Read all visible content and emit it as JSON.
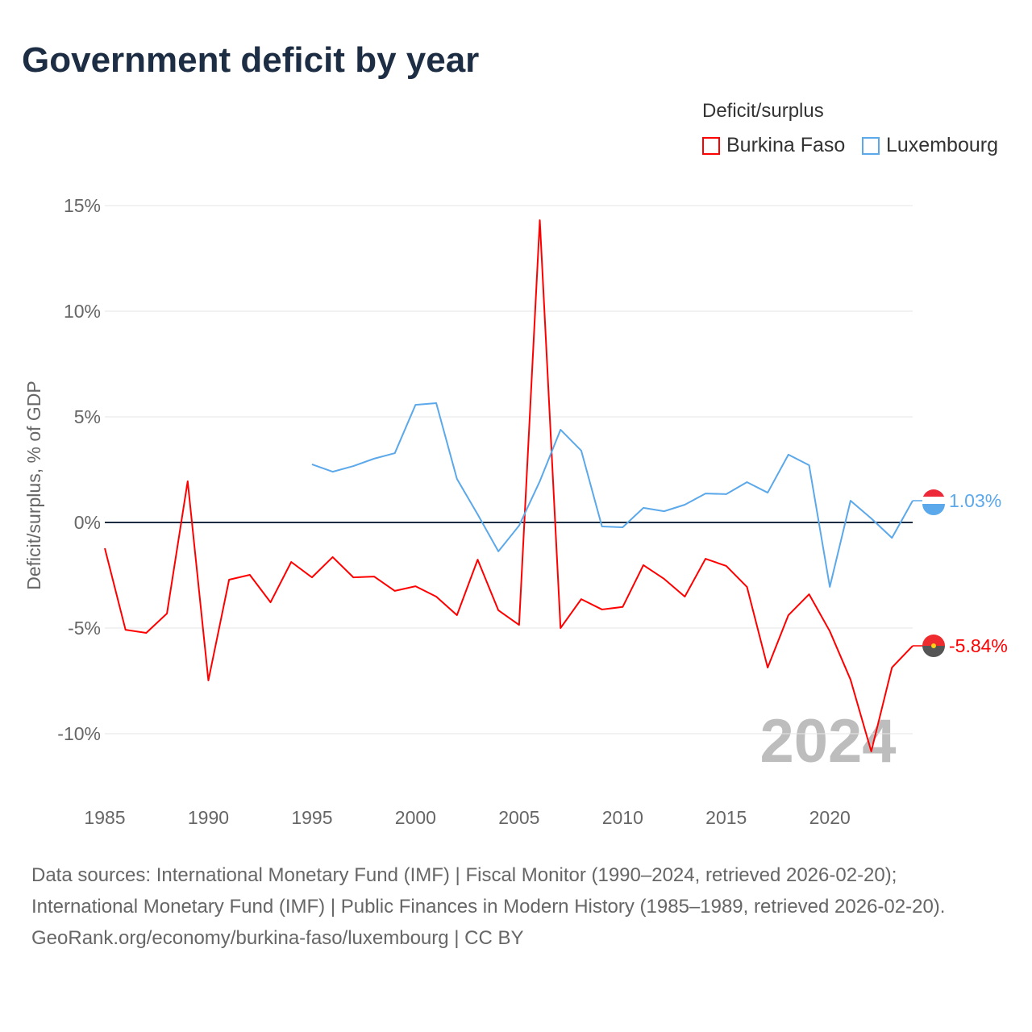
{
  "title": "Government deficit by year",
  "legend": {
    "title": "Deficit/surplus",
    "items": [
      {
        "name": "Burkina Faso",
        "color": "#ff0000"
      },
      {
        "name": "Luxembourg",
        "color": "#5ba8ea"
      }
    ]
  },
  "year_watermark": "2024",
  "footer": {
    "sources": "Data sources: International Monetary Fund (IMF) | Fiscal Monitor (1990–2024, retrieved 2026-02-20); International Monetary Fund (IMF) | Public Finances in Modern History (1985–1989, retrieved 2026-02-20).",
    "credit": "GeoRank.org/economy/burkina-faso/luxembourg | CC BY"
  },
  "chart_data": {
    "type": "line",
    "title": "Government deficit by year",
    "xlabel": "",
    "ylabel": "Deficit/surplus, % of GDP",
    "xlim": [
      1985,
      2024
    ],
    "ylim": [
      -12,
      15
    ],
    "yticks": [
      15,
      10,
      5,
      0,
      -5,
      -10
    ],
    "ytick_labels": [
      "15%",
      "10%",
      "5%",
      "0%",
      "-5%",
      "-10%"
    ],
    "xticks": [
      1985,
      1990,
      1995,
      2000,
      2005,
      2010,
      2015,
      2020
    ],
    "xtick_labels": [
      "1985",
      "1990",
      "1995",
      "2000",
      "2005",
      "2010",
      "2015",
      "2020"
    ],
    "grid": true,
    "legend_position": "top-right",
    "series": [
      {
        "name": "Burkina Faso",
        "color": "#ff0000",
        "end_label": "-5.84%",
        "x": [
          1985,
          1986,
          1987,
          1988,
          1989,
          1990,
          1991,
          1992,
          1993,
          1994,
          1995,
          1996,
          1997,
          1998,
          1999,
          2000,
          2001,
          2002,
          2003,
          2004,
          2005,
          2006,
          2007,
          2008,
          2009,
          2010,
          2011,
          2012,
          2013,
          2014,
          2015,
          2016,
          2017,
          2018,
          2019,
          2020,
          2021,
          2022,
          2023,
          2024
        ],
        "values": [
          -1.22,
          -5.08,
          -5.23,
          -4.31,
          1.95,
          -7.48,
          -2.71,
          -2.48,
          -3.78,
          -1.87,
          -2.6,
          -1.64,
          -2.6,
          -2.56,
          -3.24,
          -3.02,
          -3.51,
          -4.39,
          -1.76,
          -4.16,
          -4.85,
          14.31,
          -5.0,
          -3.63,
          -4.12,
          -4.0,
          -2.02,
          -2.67,
          -3.51,
          -1.72,
          -2.06,
          -3.05,
          -6.87,
          -4.39,
          -3.4,
          -5.15,
          -7.44,
          -10.84,
          -6.87,
          -5.84
        ]
      },
      {
        "name": "Luxembourg",
        "color": "#5ba8ea",
        "end_label": "1.03%",
        "x": [
          1995,
          1996,
          1997,
          1998,
          1999,
          2000,
          2001,
          2002,
          2003,
          2004,
          2005,
          2006,
          2007,
          2008,
          2009,
          2010,
          2011,
          2012,
          2013,
          2014,
          2015,
          2016,
          2017,
          2018,
          2019,
          2020,
          2021,
          2022,
          2023,
          2024
        ],
        "values": [
          2.75,
          2.4,
          2.67,
          3.02,
          3.28,
          5.57,
          5.65,
          2.06,
          0.38,
          -1.37,
          -0.15,
          1.95,
          4.39,
          3.4,
          -0.19,
          -0.23,
          0.69,
          0.53,
          0.84,
          1.37,
          1.34,
          1.91,
          1.41,
          3.21,
          2.71,
          -3.05,
          1.03,
          0.19,
          -0.73,
          1.03
        ]
      }
    ]
  }
}
